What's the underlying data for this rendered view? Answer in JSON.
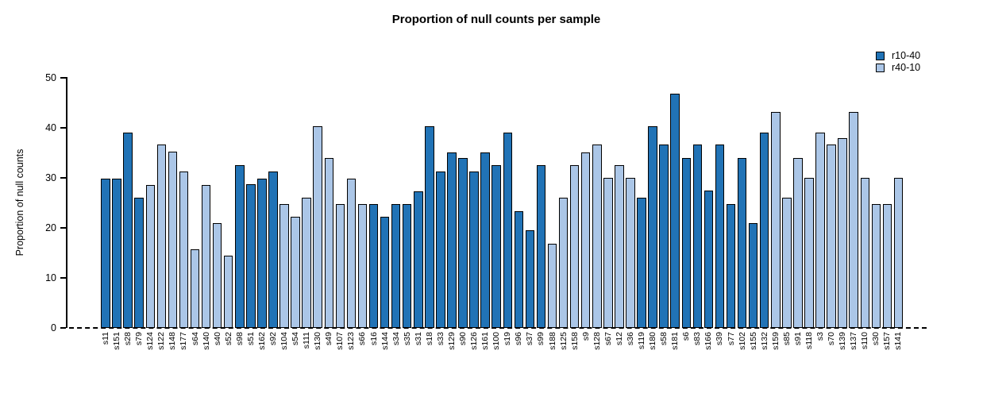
{
  "title": "Proportion of null counts per sample",
  "y_axis": {
    "label": "Proportion of null counts"
  },
  "legend": {
    "position": "top-right",
    "entries": [
      {
        "label": "r10-40",
        "color": "#2173b6"
      },
      {
        "label": "r40-10",
        "color": "#abc6e7"
      }
    ]
  },
  "chart_data": {
    "type": "bar",
    "title": "Proportion of null counts per sample",
    "xlabel": "",
    "ylabel": "Proportion of null counts",
    "ylim": [
      0,
      50
    ],
    "yticks": [
      0,
      10,
      20,
      30,
      40,
      50
    ],
    "grid": false,
    "legend_position": "top-right",
    "zero_line_style": "dashed",
    "x_tick_label_rotation": 90,
    "series": [
      {
        "name": "r10-40",
        "color": "#2173b6"
      },
      {
        "name": "r40-10",
        "color": "#abc6e7"
      }
    ],
    "categories": [
      "s11",
      "s151",
      "s28",
      "s79",
      "s124",
      "s122",
      "s148",
      "s177",
      "s64",
      "s140",
      "s40",
      "s52",
      "s98",
      "s51",
      "s162",
      "s92",
      "s104",
      "s54",
      "s111",
      "s130",
      "s49",
      "s107",
      "s123",
      "s66",
      "s16",
      "s144",
      "s34",
      "s35",
      "s31",
      "s18",
      "s33",
      "s129",
      "s90",
      "s126",
      "s161",
      "s100",
      "s19",
      "s96",
      "s37",
      "s99",
      "s188",
      "s125",
      "s158",
      "s9",
      "s128",
      "s67",
      "s12",
      "s36",
      "s119",
      "s180",
      "s58",
      "s181",
      "s6",
      "s83",
      "s166",
      "s39",
      "s77",
      "s102",
      "s155",
      "s132",
      "s159",
      "s85",
      "s91",
      "s118",
      "s3",
      "s70",
      "s139",
      "s137",
      "s110",
      "s30",
      "s157",
      "s141"
    ],
    "values": [
      29.8,
      29.8,
      39.1,
      26.1,
      28.6,
      36.6,
      35.2,
      31.3,
      15.7,
      28.6,
      21.0,
      14.5,
      32.6,
      28.7,
      29.8,
      31.3,
      24.7,
      22.2,
      26.1,
      40.3,
      33.9,
      24.7,
      29.8,
      24.7,
      24.7,
      22.2,
      24.7,
      24.7,
      27.3,
      40.3,
      31.3,
      35.1,
      33.9,
      31.3,
      35.1,
      32.5,
      39.0,
      23.4,
      19.6,
      32.5,
      16.9,
      26.1,
      32.5,
      35.1,
      36.6,
      30.0,
      32.5,
      30.0,
      26.1,
      40.3,
      36.6,
      46.9,
      33.9,
      36.6,
      27.4,
      36.6,
      24.8,
      34.0,
      21.0,
      39.1,
      43.1,
      26.1,
      34.0,
      30.0,
      39.1,
      36.6,
      37.9,
      43.1,
      30.0,
      24.8,
      24.8,
      30.0
    ],
    "bar_series": [
      "r10-40",
      "r10-40",
      "r10-40",
      "r10-40",
      "r40-10",
      "r40-10",
      "r40-10",
      "r40-10",
      "r40-10",
      "r40-10",
      "r40-10",
      "r40-10",
      "r10-40",
      "r10-40",
      "r10-40",
      "r10-40",
      "r40-10",
      "r40-10",
      "r40-10",
      "r40-10",
      "r40-10",
      "r40-10",
      "r40-10",
      "r40-10",
      "r10-40",
      "r10-40",
      "r10-40",
      "r10-40",
      "r10-40",
      "r10-40",
      "r10-40",
      "r10-40",
      "r10-40",
      "r10-40",
      "r10-40",
      "r10-40",
      "r10-40",
      "r10-40",
      "r10-40",
      "r10-40",
      "r40-10",
      "r40-10",
      "r40-10",
      "r40-10",
      "r40-10",
      "r40-10",
      "r40-10",
      "r40-10",
      "r10-40",
      "r10-40",
      "r10-40",
      "r10-40",
      "r10-40",
      "r10-40",
      "r10-40",
      "r10-40",
      "r10-40",
      "r10-40",
      "r10-40",
      "r10-40",
      "r40-10",
      "r40-10",
      "r40-10",
      "r40-10",
      "r40-10",
      "r40-10",
      "r40-10",
      "r40-10",
      "r40-10",
      "r40-10",
      "r40-10",
      "r40-10"
    ]
  }
}
